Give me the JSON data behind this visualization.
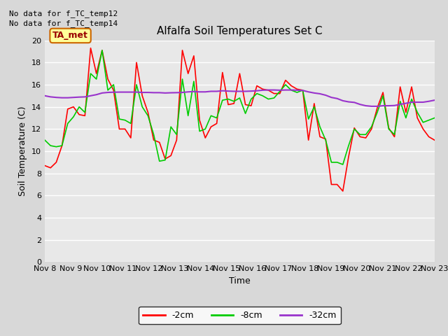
{
  "title": "Alfalfa Soil Temperatures Set C",
  "xlabel": "Time",
  "ylabel": "Soil Temperature (C)",
  "no_data_text": [
    "No data for f_TC_temp12",
    "No data for f_TC_temp14"
  ],
  "ta_met_label": "TA_met",
  "ta_met_box_color": "#ffff99",
  "ta_met_box_edge": "#cc6600",
  "ta_met_text_color": "#990000",
  "ylim": [
    0,
    20
  ],
  "yticks": [
    0,
    2,
    4,
    6,
    8,
    10,
    12,
    14,
    16,
    18,
    20
  ],
  "xtick_labels": [
    "Nov 8",
    "Nov 9",
    "Nov 10",
    "Nov 11",
    "Nov 12",
    "Nov 13",
    "Nov 14",
    "Nov 15",
    "Nov 16",
    "Nov 17",
    "Nov 18",
    "Nov 19",
    "Nov 20",
    "Nov 21",
    "Nov 22",
    "Nov 23"
  ],
  "background_color": "#d8d8d8",
  "plot_bg_color": "#e8e8e8",
  "grid_color": "#ffffff",
  "legend_labels": [
    "-2cm",
    "-8cm",
    "-32cm"
  ],
  "legend_colors": [
    "#ff0000",
    "#00cc00",
    "#9933cc"
  ],
  "series_2cm": [
    8.7,
    8.5,
    9.0,
    10.5,
    13.8,
    14.0,
    13.3,
    13.2,
    19.3,
    17.0,
    19.1,
    16.5,
    15.5,
    12.0,
    12.0,
    11.2,
    18.0,
    15.0,
    13.5,
    11.0,
    10.8,
    9.3,
    9.6,
    11.0,
    19.1,
    17.0,
    18.6,
    12.8,
    11.2,
    12.2,
    12.5,
    17.1,
    14.2,
    14.3,
    17.0,
    14.2,
    14.1,
    15.9,
    15.6,
    15.5,
    15.2,
    15.2,
    16.4,
    15.9,
    15.6,
    15.5,
    11.0,
    14.3,
    11.3,
    11.1,
    7.0,
    7.0,
    6.4,
    9.5,
    12.1,
    11.3,
    11.2,
    12.0,
    13.9,
    15.3,
    12.1,
    11.3,
    15.8,
    13.5,
    15.8,
    13.0,
    12.0,
    11.3,
    11.0
  ],
  "series_8cm": [
    11.0,
    10.5,
    10.4,
    10.5,
    12.5,
    13.1,
    14.0,
    13.5,
    17.0,
    16.5,
    19.1,
    15.5,
    16.0,
    12.9,
    12.8,
    12.5,
    16.0,
    14.0,
    13.2,
    11.5,
    9.1,
    9.2,
    12.2,
    11.5,
    16.5,
    13.2,
    16.3,
    11.8,
    12.0,
    13.2,
    13.0,
    14.6,
    14.7,
    14.5,
    14.8,
    13.4,
    14.7,
    15.2,
    15.0,
    14.7,
    14.8,
    15.4,
    16.0,
    15.5,
    15.3,
    15.5,
    12.9,
    14.0,
    12.2,
    11.0,
    9.0,
    9.0,
    8.8,
    10.5,
    12.0,
    11.5,
    11.5,
    12.2,
    13.5,
    15.0,
    12.0,
    11.5,
    14.5,
    13.0,
    14.7,
    13.5,
    12.6,
    12.8,
    13.0
  ],
  "series_32cm": [
    15.0,
    14.9,
    14.85,
    14.82,
    14.82,
    14.85,
    14.88,
    14.9,
    15.0,
    15.1,
    15.25,
    15.3,
    15.32,
    15.33,
    15.33,
    15.33,
    15.33,
    15.3,
    15.3,
    15.28,
    15.28,
    15.25,
    15.27,
    15.28,
    15.3,
    15.35,
    15.38,
    15.35,
    15.35,
    15.4,
    15.4,
    15.45,
    15.42,
    15.4,
    15.4,
    15.4,
    15.42,
    15.45,
    15.5,
    15.52,
    15.52,
    15.5,
    15.52,
    15.52,
    15.5,
    15.48,
    15.35,
    15.25,
    15.18,
    15.05,
    14.85,
    14.75,
    14.55,
    14.45,
    14.4,
    14.22,
    14.1,
    14.05,
    14.05,
    14.1,
    14.1,
    14.12,
    14.22,
    14.32,
    14.42,
    14.42,
    14.42,
    14.5,
    14.6
  ]
}
